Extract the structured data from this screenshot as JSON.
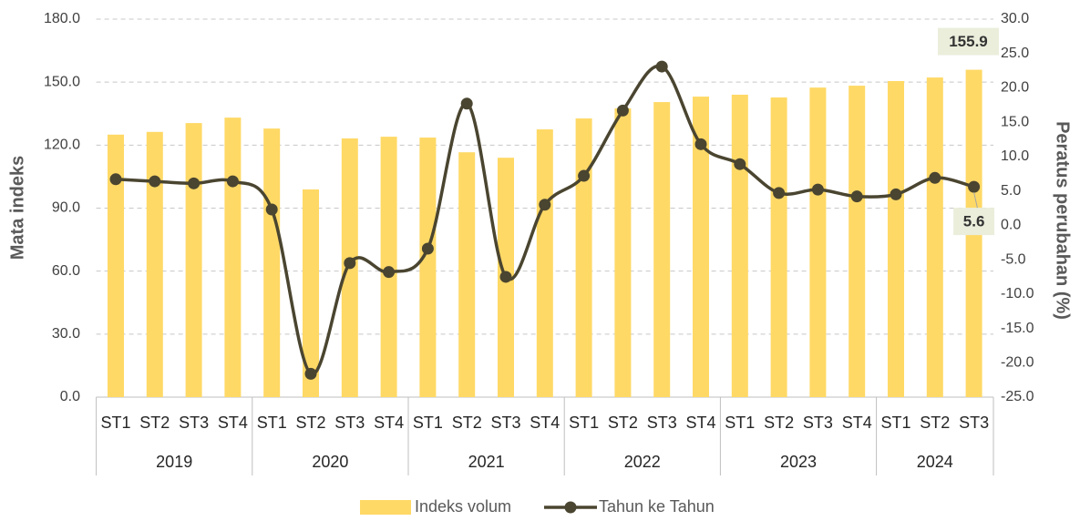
{
  "chart_data": {
    "type": "bar-line",
    "groups": [
      {
        "name": "2019",
        "categories": [
          "ST1",
          "ST2",
          "ST3",
          "ST4"
        ]
      },
      {
        "name": "2020",
        "categories": [
          "ST1",
          "ST2",
          "ST3",
          "ST4"
        ]
      },
      {
        "name": "2021",
        "categories": [
          "ST1",
          "ST2",
          "ST3",
          "ST4"
        ]
      },
      {
        "name": "2022",
        "categories": [
          "ST1",
          "ST2",
          "ST3",
          "ST4"
        ]
      },
      {
        "name": "2023",
        "categories": [
          "ST1",
          "ST2",
          "ST3",
          "ST4"
        ]
      },
      {
        "name": "2024",
        "categories": [
          "ST1",
          "ST2",
          "ST3"
        ]
      }
    ],
    "series": [
      {
        "name": "Indeks volum",
        "type": "bar",
        "color": "#ffd966",
        "axis": "y",
        "values": [
          125.0,
          126.3,
          130.5,
          133.1,
          127.9,
          98.9,
          123.2,
          124.0,
          123.6,
          116.6,
          114.0,
          127.5,
          132.7,
          137.5,
          140.5,
          143.1,
          144.0,
          142.7,
          147.4,
          148.3,
          150.5,
          152.2,
          155.9
        ]
      },
      {
        "name": "Tahun ke Tahun",
        "type": "line",
        "color": "#4a4530",
        "axis": "y2",
        "values": [
          6.7,
          6.4,
          6.1,
          6.4,
          2.3,
          -21.6,
          -5.5,
          -6.8,
          -3.4,
          17.7,
          -7.5,
          3.0,
          7.2,
          16.7,
          23.1,
          11.8,
          8.9,
          4.7,
          5.2,
          4.2,
          4.5,
          6.9,
          5.6
        ]
      }
    ],
    "data_labels": "last",
    "ylabel": "Mata indeks",
    "y2label": "Peratus perubahan (%)",
    "ylim": [
      0,
      180
    ],
    "yticks": [
      {
        "value": 0,
        "label": "0.0"
      },
      {
        "value": 30,
        "label": "30.0"
      },
      {
        "value": 60,
        "label": "60.0"
      },
      {
        "value": 90,
        "label": "90.0"
      },
      {
        "value": 120,
        "label": "120.0"
      },
      {
        "value": 150,
        "label": "150.0"
      },
      {
        "value": 180,
        "label": "180.0"
      }
    ],
    "y2lim": [
      -25,
      30
    ],
    "y2ticks": [
      {
        "value": -25,
        "label": "-25.0"
      },
      {
        "value": -20,
        "label": "-20.0"
      },
      {
        "value": -15,
        "label": "-15.0"
      },
      {
        "value": -10,
        "label": "-10.0"
      },
      {
        "value": -5,
        "label": "-5.0"
      },
      {
        "value": 0,
        "label": "0.0"
      },
      {
        "value": 5,
        "label": "5.0"
      },
      {
        "value": 10,
        "label": "10.0"
      },
      {
        "value": 15,
        "label": "15.0"
      },
      {
        "value": 20,
        "label": "20.0"
      },
      {
        "value": 25,
        "label": "25.0"
      },
      {
        "value": 30,
        "label": "30.0"
      }
    ],
    "grid": true,
    "legend": "bottom"
  }
}
